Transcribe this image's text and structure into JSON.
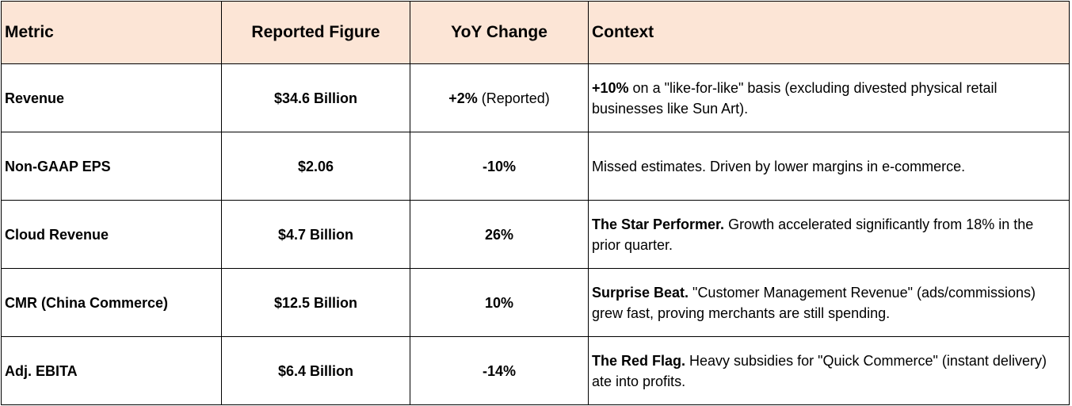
{
  "table": {
    "headers": {
      "metric": "Metric",
      "figure": "Reported Figure",
      "yoy": "YoY Change",
      "context": "Context"
    },
    "rows": [
      {
        "metric": "Revenue",
        "figure": "$34.6 Billion",
        "yoy_bold": "+2%",
        "yoy_note": " (Reported)",
        "context_bold": "+10%",
        "context_text": " on a \"like-for-like\" basis (excluding divested physical retail businesses like Sun Art)."
      },
      {
        "metric": "Non-GAAP EPS",
        "figure": "$2.06",
        "yoy_bold": "-10%",
        "yoy_note": "",
        "context_bold": "",
        "context_text": "Missed estimates. Driven by lower margins in e-commerce."
      },
      {
        "metric": "Cloud Revenue",
        "figure": "$4.7 Billion",
        "yoy_bold": "26%",
        "yoy_note": "",
        "context_bold": "The Star Performer.",
        "context_text": " Growth accelerated significantly from 18% in the prior quarter."
      },
      {
        "metric": "CMR (China Commerce)",
        "figure": "$12.5 Billion",
        "yoy_bold": "10%",
        "yoy_note": "",
        "context_bold": "Surprise Beat.",
        "context_text": " \"Customer Management Revenue\" (ads/commissions) grew fast, proving merchants are still spending."
      },
      {
        "metric": "Adj. EBITA",
        "figure": "$6.4 Billion",
        "yoy_bold": "-14%",
        "yoy_note": "",
        "context_bold": "The Red Flag.",
        "context_text": " Heavy subsidies for \"Quick Commerce\" (instant delivery) ate into profits."
      }
    ]
  }
}
